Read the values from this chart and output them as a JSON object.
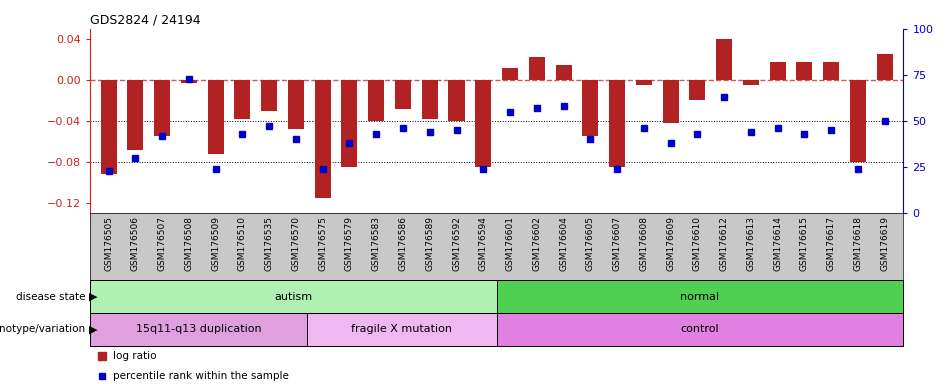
{
  "title": "GDS2824 / 24194",
  "samples": [
    "GSM176505",
    "GSM176506",
    "GSM176507",
    "GSM176508",
    "GSM176509",
    "GSM176510",
    "GSM176535",
    "GSM176570",
    "GSM176575",
    "GSM176579",
    "GSM176583",
    "GSM176586",
    "GSM176589",
    "GSM176592",
    "GSM176594",
    "GSM176601",
    "GSM176602",
    "GSM176604",
    "GSM176605",
    "GSM176607",
    "GSM176608",
    "GSM176609",
    "GSM176610",
    "GSM176612",
    "GSM176613",
    "GSM176614",
    "GSM176615",
    "GSM176617",
    "GSM176618",
    "GSM176619"
  ],
  "log_ratio": [
    -0.092,
    -0.068,
    -0.055,
    -0.003,
    -0.072,
    -0.038,
    -0.03,
    -0.048,
    -0.115,
    -0.085,
    -0.04,
    -0.028,
    -0.038,
    -0.04,
    -0.085,
    0.012,
    0.022,
    0.015,
    -0.055,
    -0.085,
    -0.005,
    -0.042,
    -0.02,
    0.04,
    -0.005,
    0.018,
    0.018,
    0.018,
    -0.08,
    0.025
  ],
  "percentile": [
    23,
    30,
    42,
    73,
    24,
    43,
    47,
    40,
    24,
    38,
    43,
    46,
    44,
    45,
    24,
    55,
    57,
    58,
    40,
    24,
    46,
    38,
    43,
    63,
    44,
    46,
    43,
    45,
    24,
    50
  ],
  "bar_color": "#b22222",
  "dot_color": "#0000cd",
  "zero_line_color": "#cd5c5c",
  "grid_color": "black",
  "bg_color": "white",
  "label_bg": "#c8c8c8",
  "disease_state_groups": [
    {
      "label": "autism",
      "start": 0,
      "end": 15,
      "color": "#b0f0b0"
    },
    {
      "label": "normal",
      "start": 15,
      "end": 30,
      "color": "#50d050"
    }
  ],
  "genotype_groups": [
    {
      "label": "15q11-q13 duplication",
      "start": 0,
      "end": 8,
      "color": "#e0a0e0"
    },
    {
      "label": "fragile X mutation",
      "start": 8,
      "end": 15,
      "color": "#f0b8f0"
    },
    {
      "label": "control",
      "start": 15,
      "end": 30,
      "color": "#e080e0"
    }
  ],
  "ylim_left": [
    -0.13,
    0.05
  ],
  "ylim_right": [
    0,
    100
  ],
  "yticks_left": [
    -0.12,
    -0.08,
    -0.04,
    0.0,
    0.04
  ],
  "yticks_right": [
    0,
    25,
    50,
    75,
    100
  ],
  "left_axis_color": "#cc2222",
  "right_axis_color": "#0000cc"
}
